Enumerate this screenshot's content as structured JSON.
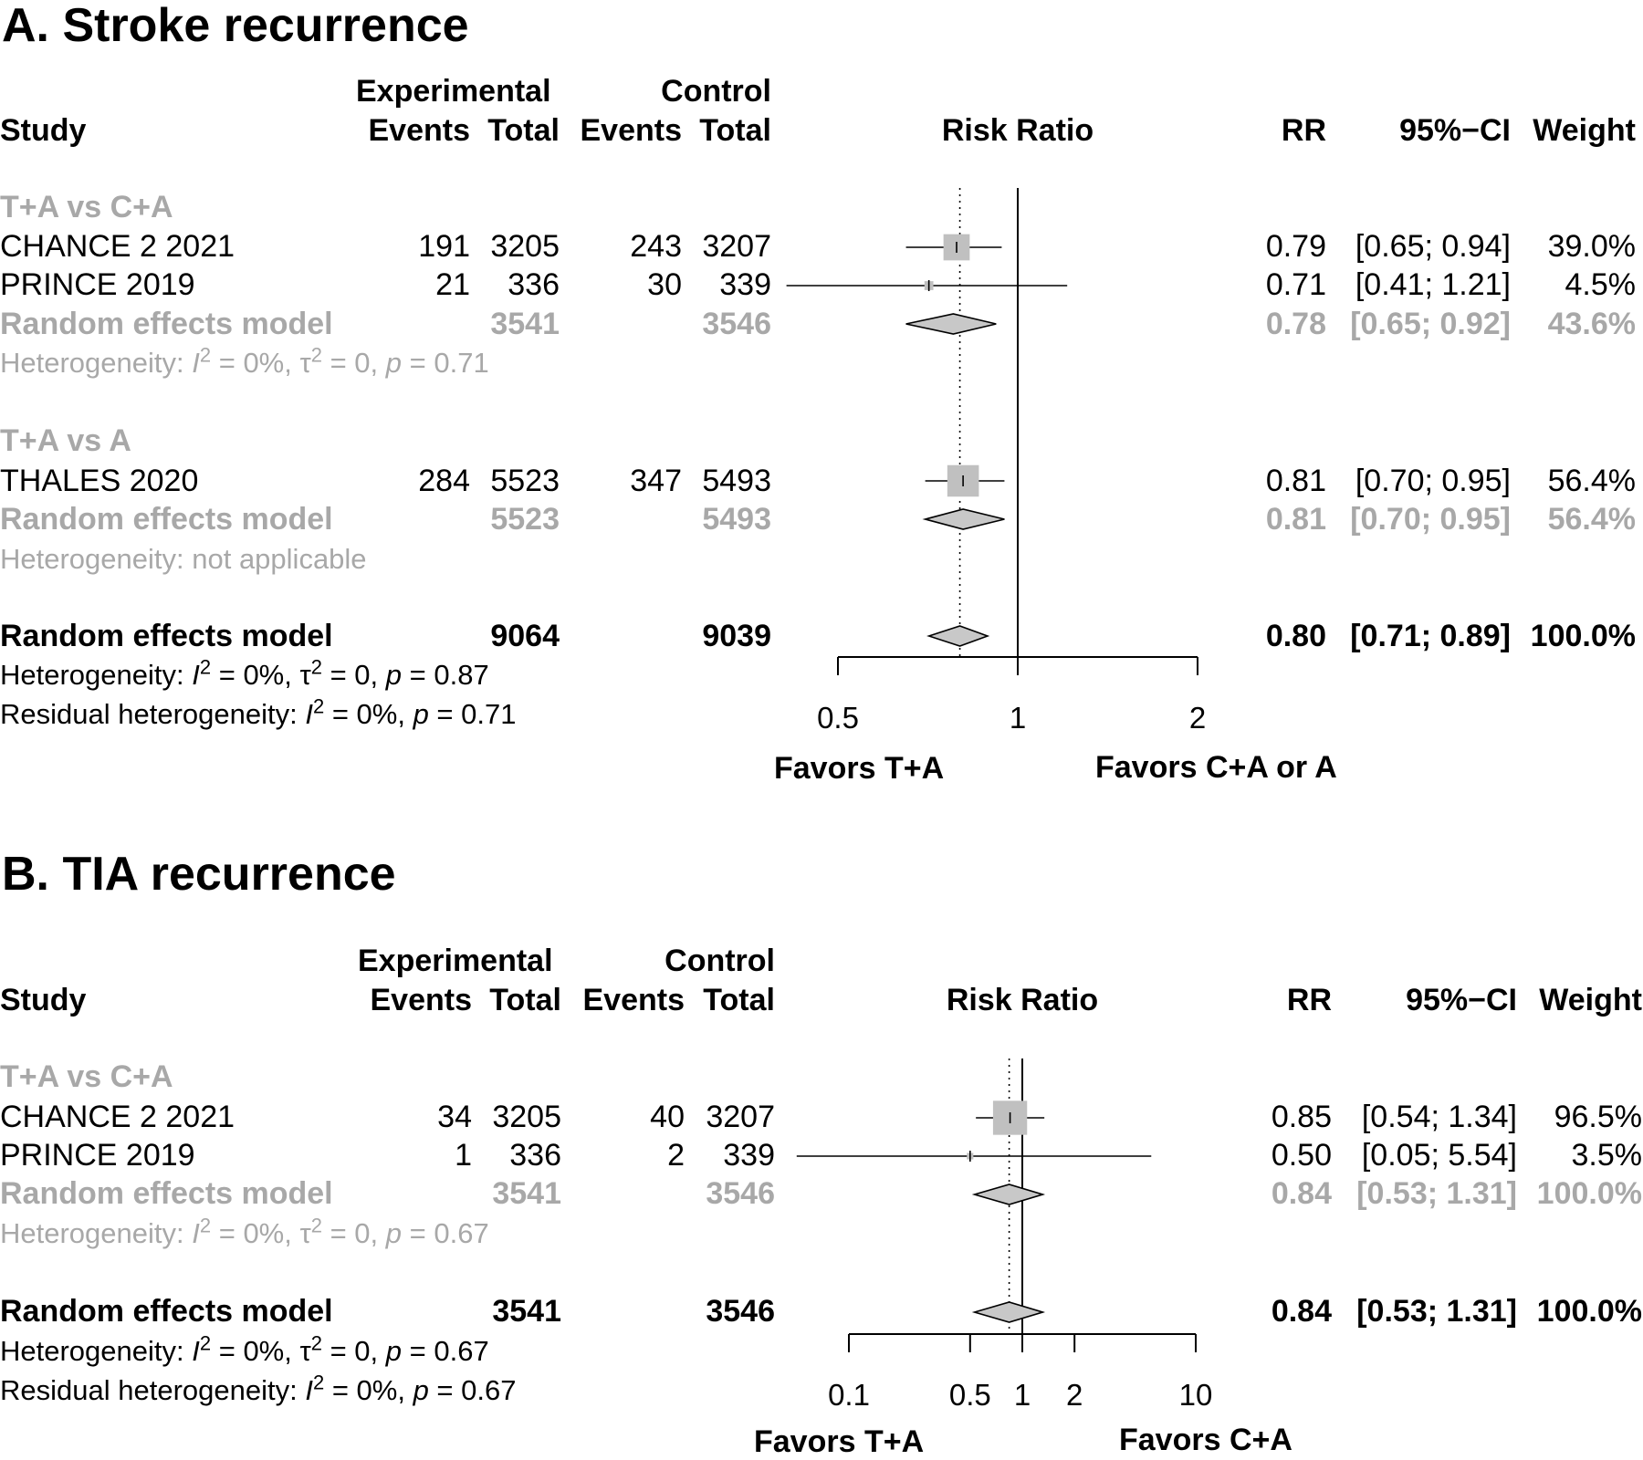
{
  "chart_data": [
    {
      "type": "forest",
      "title": "A. Stroke recurrence",
      "columns": {
        "study": "Study",
        "group1": "Experimental",
        "group2": "Control",
        "events": "Events",
        "total": "Total",
        "plot": "Risk Ratio",
        "rr": "RR",
        "ci": "95%−CI",
        "weight": "Weight"
      },
      "subgroups": [
        {
          "label": "T+A vs C+A",
          "studies": [
            {
              "name": "CHANCE 2 2021",
              "e_events": "191",
              "e_total": "3205",
              "c_events": "243",
              "c_total": "3207",
              "rr_text": "0.79",
              "ci_text": "[0.65; 0.94]",
              "weight_text": "39.0%",
              "rr": 0.79,
              "lo": 0.65,
              "hi": 0.94,
              "weight": 39.0
            },
            {
              "name": "PRINCE 2019",
              "e_events": "21",
              "e_total": "336",
              "c_events": "30",
              "c_total": "339",
              "rr_text": "0.71",
              "ci_text": "[0.41; 1.21]",
              "weight_text": "4.5%",
              "rr": 0.71,
              "lo": 0.41,
              "hi": 1.21,
              "weight": 4.5
            }
          ],
          "model": {
            "name": "Random effects model",
            "e_total": "3541",
            "c_total": "3546",
            "rr_text": "0.78",
            "ci_text": "[0.65; 0.92]",
            "weight_text": "43.6%",
            "rr": 0.78,
            "lo": 0.65,
            "hi": 0.92
          },
          "heterogeneity": {
            "prefix": "Heterogeneity: ",
            "i2": " = 0%, ",
            "tau": " = 0, ",
            "p": " = 0.71",
            "text": ""
          }
        },
        {
          "label": "T+A vs A",
          "studies": [
            {
              "name": "THALES 2020",
              "e_events": "284",
              "e_total": "5523",
              "c_events": "347",
              "c_total": "5493",
              "rr_text": "0.81",
              "ci_text": "[0.70; 0.95]",
              "weight_text": "56.4%",
              "rr": 0.81,
              "lo": 0.7,
              "hi": 0.95,
              "weight": 56.4
            }
          ],
          "model": {
            "name": "Random effects model",
            "e_total": "5523",
            "c_total": "5493",
            "rr_text": "0.81",
            "ci_text": "[0.70; 0.95]",
            "weight_text": "56.4%",
            "rr": 0.81,
            "lo": 0.7,
            "hi": 0.95
          },
          "heterogeneity": {
            "text": "Heterogeneity: not applicable"
          }
        }
      ],
      "overall": {
        "name": "Random effects model",
        "e_total": "9064",
        "c_total": "9039",
        "rr_text": "0.80",
        "ci_text": "[0.71; 0.89]",
        "weight_text": "100.0%",
        "rr": 0.8,
        "lo": 0.71,
        "hi": 0.89
      },
      "overall_heterogeneity": {
        "prefix": "Heterogeneity: ",
        "i2": " = 0%, ",
        "tau": " = 0, ",
        "p": " = 0.87"
      },
      "residual_heterogeneity": {
        "prefix": "Residual heterogeneity: ",
        "i2": " = 0%, ",
        "p": " = 0.71"
      },
      "x_scale": "log",
      "xlim": [
        0.5,
        2
      ],
      "ticks": [
        0.5,
        1,
        2
      ],
      "tick_labels": [
        "0.5",
        "1",
        "2"
      ],
      "favors_left": "Favors T+A",
      "favors_right": "Favors C+A or A"
    },
    {
      "type": "forest",
      "title": "B. TIA recurrence",
      "columns": {
        "study": "Study",
        "group1": "Experimental",
        "group2": "Control",
        "events": "Events",
        "total": "Total",
        "plot": "Risk Ratio",
        "rr": "RR",
        "ci": "95%−CI",
        "weight": "Weight"
      },
      "subgroups": [
        {
          "label": "T+A vs C+A",
          "studies": [
            {
              "name": "CHANCE 2 2021",
              "e_events": "34",
              "e_total": "3205",
              "c_events": "40",
              "c_total": "3207",
              "rr_text": "0.85",
              "ci_text": "[0.54; 1.34]",
              "weight_text": "96.5%",
              "rr": 0.85,
              "lo": 0.54,
              "hi": 1.34,
              "weight": 96.5
            },
            {
              "name": "PRINCE 2019",
              "e_events": "1",
              "e_total": "336",
              "c_events": "2",
              "c_total": "339",
              "rr_text": "0.50",
              "ci_text": "[0.05; 5.54]",
              "weight_text": "3.5%",
              "rr": 0.5,
              "lo": 0.05,
              "hi": 5.54,
              "weight": 3.5
            }
          ],
          "model": {
            "name": "Random effects model",
            "e_total": "3541",
            "c_total": "3546",
            "rr_text": "0.84",
            "ci_text": "[0.53; 1.31]",
            "weight_text": "100.0%",
            "rr": 0.84,
            "lo": 0.53,
            "hi": 1.31
          },
          "heterogeneity": {
            "prefix": "Heterogeneity: ",
            "i2": " = 0%, ",
            "tau": " = 0, ",
            "p": " = 0.67",
            "text": ""
          }
        }
      ],
      "overall": {
        "name": "Random effects model",
        "e_total": "3541",
        "c_total": "3546",
        "rr_text": "0.84",
        "ci_text": "[0.53; 1.31]",
        "weight_text": "100.0%",
        "rr": 0.84,
        "lo": 0.53,
        "hi": 1.31
      },
      "overall_heterogeneity": {
        "prefix": "Heterogeneity: ",
        "i2": " = 0%, ",
        "tau": " = 0, ",
        "p": " = 0.67"
      },
      "residual_heterogeneity": {
        "prefix": "Residual heterogeneity: ",
        "i2": " = 0%, ",
        "p": " = 0.67"
      },
      "x_scale": "log",
      "xlim": [
        0.1,
        10
      ],
      "ticks": [
        0.1,
        0.5,
        1,
        2,
        10
      ],
      "tick_labels": [
        "0.1",
        "0.5",
        "1",
        "2",
        "10"
      ],
      "favors_left": "Favors T+A",
      "favors_right": "Favors C+A"
    }
  ],
  "colors": {
    "subgroup_text": "#a8a8a8",
    "box_fill": "#c0c0c0",
    "diamond_fill": "#c8c8c8",
    "line": "#000000"
  }
}
